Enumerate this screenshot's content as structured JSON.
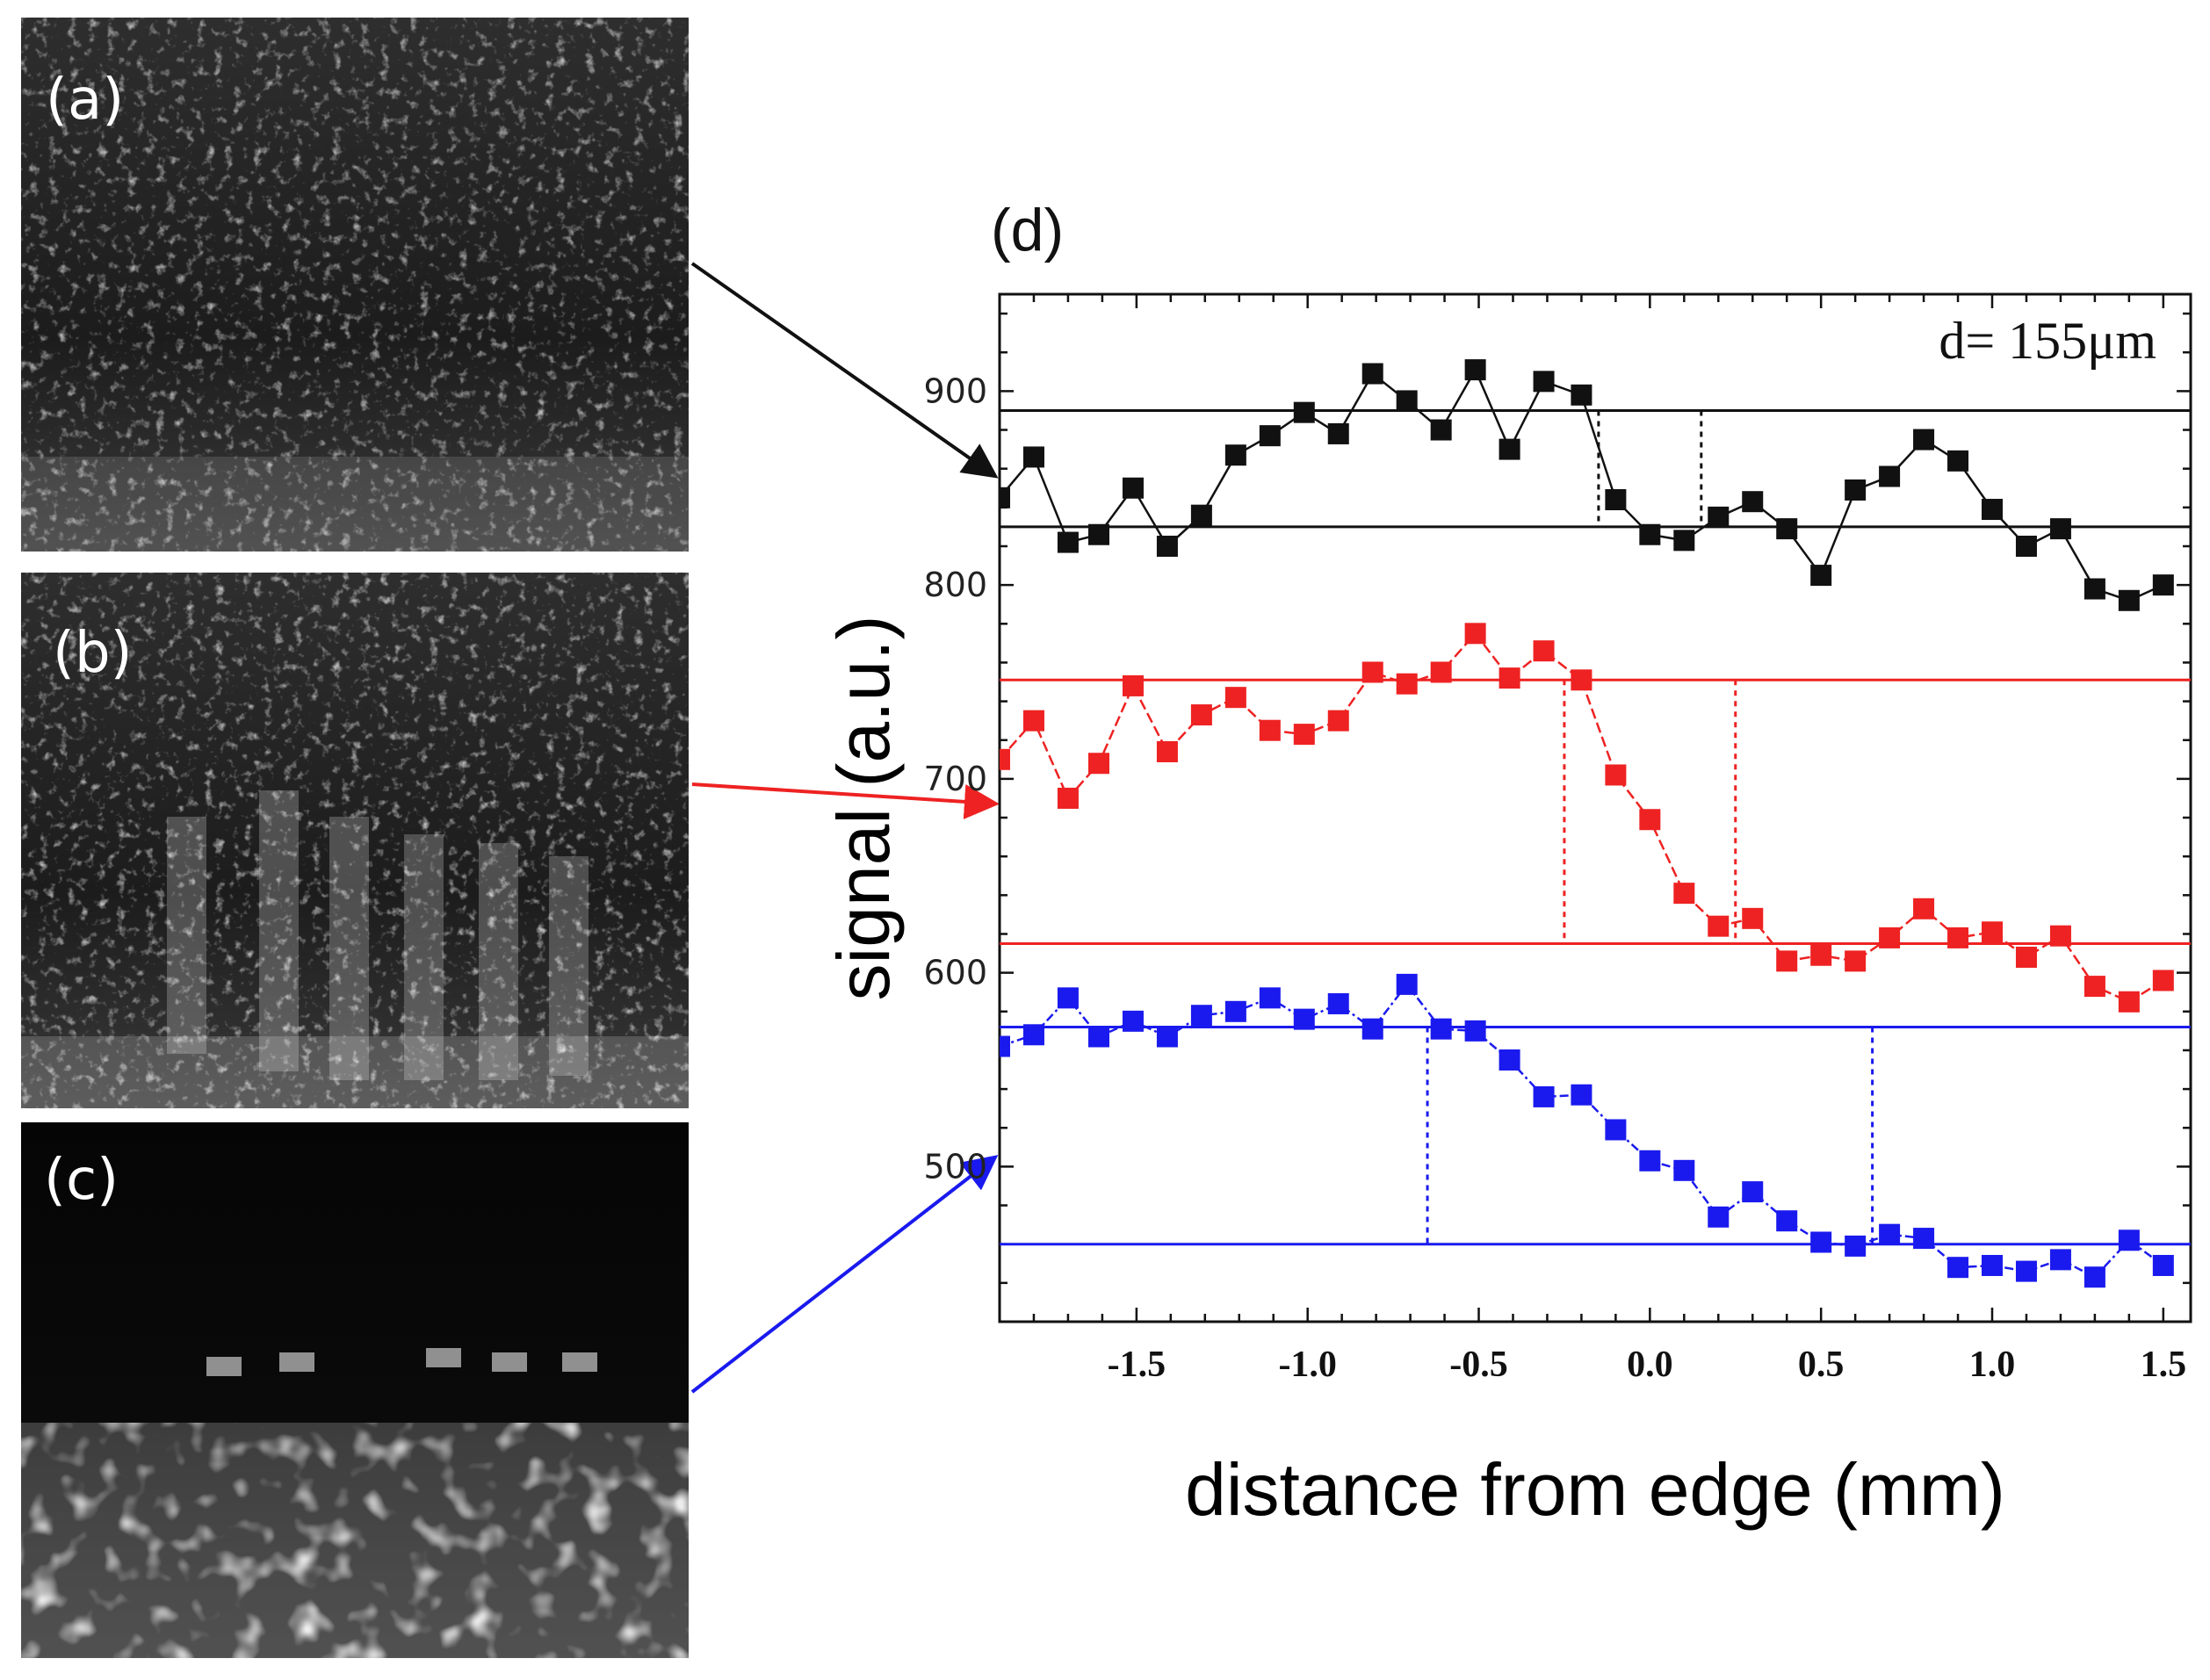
{
  "panels": {
    "a": {
      "label": "(a)"
    },
    "b": {
      "label": "(b)"
    },
    "c": {
      "label": "(c)"
    },
    "d": {
      "label": "(d)"
    }
  },
  "colors": {
    "black": "#111111",
    "red": "#ee2222",
    "blue": "#1a1aee"
  },
  "chart_data": {
    "type": "scatter",
    "title": "(d)",
    "xlabel": "distance from edge (mm)",
    "ylabel": "signal (a.u.)",
    "xlim": [
      -1.9,
      1.58
    ],
    "ylim": [
      420,
      950
    ],
    "xticks": [
      -1.5,
      -1.0,
      -0.5,
      0.0,
      0.5,
      1.0,
      1.5
    ],
    "xtick_labels": [
      "-1.5",
      "-1.0",
      "-0.5",
      "0.0",
      "0.5",
      "1.0",
      "1.5"
    ],
    "yticks": [
      500,
      600,
      700,
      800,
      900
    ],
    "ytick_labels": [
      "500",
      "600",
      "700",
      "800",
      "900"
    ],
    "annotation": "d= 155μm",
    "series": [
      {
        "name": "(a)",
        "color": "#111111",
        "x": [
          -1.9,
          -1.8,
          -1.7,
          -1.61,
          -1.51,
          -1.41,
          -1.31,
          -1.21,
          -1.11,
          -1.01,
          -0.91,
          -0.81,
          -0.71,
          -0.61,
          -0.51,
          -0.41,
          -0.31,
          -0.2,
          -0.1,
          0.0,
          0.1,
          0.2,
          0.3,
          0.4,
          0.5,
          0.6,
          0.7,
          0.8,
          0.9,
          1.0,
          1.1,
          1.2,
          1.3,
          1.4,
          1.5
        ],
        "y": [
          845,
          866,
          822,
          826,
          850,
          820,
          836,
          867,
          877,
          889,
          878,
          909,
          895,
          880,
          911,
          870,
          905,
          898,
          844,
          826,
          823,
          835,
          843,
          829,
          805,
          849,
          856,
          875,
          864,
          839,
          820,
          829,
          798,
          792,
          800
        ],
        "levels": {
          "high": 890,
          "low": 830
        },
        "edge_markers": [
          -0.15,
          0.15
        ]
      },
      {
        "name": "(b)",
        "color": "#ee2222",
        "x": [
          -1.9,
          -1.8,
          -1.7,
          -1.61,
          -1.51,
          -1.41,
          -1.31,
          -1.21,
          -1.11,
          -1.01,
          -0.91,
          -0.81,
          -0.71,
          -0.61,
          -0.51,
          -0.41,
          -0.31,
          -0.2,
          -0.1,
          0.0,
          0.1,
          0.2,
          0.3,
          0.4,
          0.5,
          0.6,
          0.7,
          0.8,
          0.9,
          1.0,
          1.1,
          1.2,
          1.3,
          1.4,
          1.5
        ],
        "y": [
          710,
          730,
          690,
          708,
          748,
          714,
          733,
          742,
          725,
          723,
          730,
          755,
          749,
          755,
          775,
          752,
          766,
          751,
          702,
          679,
          641,
          624,
          628,
          606,
          609,
          606,
          618,
          633,
          618,
          621,
          608,
          619,
          593,
          585,
          596
        ],
        "levels": {
          "high": 751,
          "low": 615
        },
        "edge_markers": [
          -0.25,
          0.25
        ]
      },
      {
        "name": "(c)",
        "color": "#1a1aee",
        "x": [
          -1.9,
          -1.8,
          -1.7,
          -1.61,
          -1.51,
          -1.41,
          -1.31,
          -1.21,
          -1.11,
          -1.01,
          -0.91,
          -0.81,
          -0.71,
          -0.61,
          -0.51,
          -0.41,
          -0.31,
          -0.2,
          -0.1,
          0.0,
          0.1,
          0.2,
          0.3,
          0.4,
          0.5,
          0.6,
          0.7,
          0.8,
          0.9,
          1.0,
          1.1,
          1.2,
          1.3,
          1.4,
          1.5
        ],
        "y": [
          562,
          568,
          587,
          567,
          575,
          567,
          578,
          580,
          587,
          576,
          584,
          571,
          594,
          571,
          570,
          555,
          536,
          537,
          519,
          503,
          498,
          474,
          487,
          472,
          461,
          459,
          465,
          463,
          448,
          449,
          446,
          452,
          443,
          462,
          449
        ],
        "levels": {
          "high": 572,
          "low": 460
        },
        "edge_markers": [
          -0.65,
          0.65
        ]
      }
    ]
  }
}
